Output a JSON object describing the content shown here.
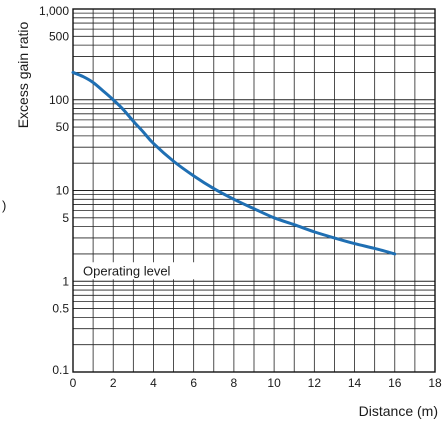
{
  "chart_data": {
    "type": "line",
    "xlabel": "Distance (m)",
    "ylabel": "Excess gain ratio",
    "xlim": [
      0,
      18
    ],
    "ylim": [
      0.1,
      1000
    ],
    "y_scale": "log",
    "grid": true,
    "x_ticks": [
      "0",
      "2",
      "4",
      "6",
      "8",
      "10",
      "12",
      "14",
      "16",
      "18"
    ],
    "y_ticks": [
      {
        "value": 0.1,
        "label": "0.1"
      },
      {
        "value": 0.5,
        "label": "0.5"
      },
      {
        "value": 1,
        "label": "1"
      },
      {
        "value": 5,
        "label": "5"
      },
      {
        "value": 10,
        "label": "10"
      },
      {
        "value": 50,
        "label": "50"
      },
      {
        "value": 100,
        "label": "100"
      },
      {
        "value": 500,
        "label": "500"
      },
      {
        "value": 1000,
        "label": "1,000"
      }
    ],
    "series": [
      {
        "color": "#1f6fb3",
        "x": [
          0,
          0.5,
          1,
          1.5,
          2,
          2.5,
          3,
          3.5,
          4,
          5,
          6,
          7,
          8,
          9,
          10,
          11,
          12,
          13,
          14,
          15,
          16
        ],
        "y": [
          200,
          180,
          155,
          125,
          100,
          78,
          58,
          44,
          33,
          21,
          14.5,
          10.5,
          8,
          6.3,
          5,
          4.2,
          3.5,
          3,
          2.6,
          2.3,
          2.0
        ]
      }
    ],
    "annotations": [
      {
        "text": "Operating level",
        "y": 1
      }
    ]
  },
  "stray_mark": ")"
}
